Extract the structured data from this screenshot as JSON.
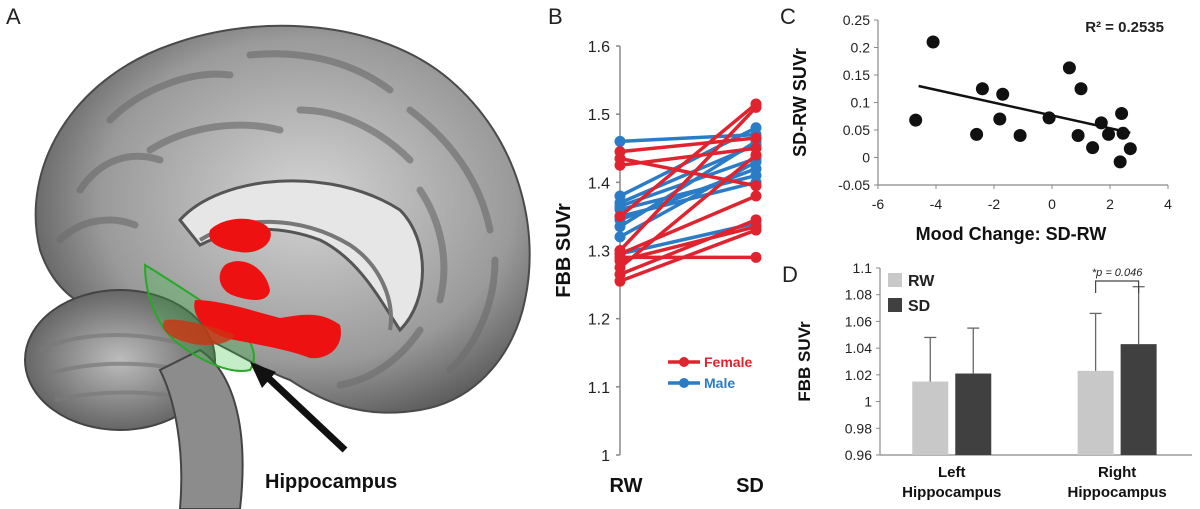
{
  "panel_labels": {
    "a": "A",
    "b": "B",
    "c": "C",
    "d": "D"
  },
  "panel_a": {
    "image_description": "sagittal-brain-mri",
    "annotation": "Hippocampus",
    "colors": {
      "red_region": "#ee1111",
      "green_region": "#22bb22"
    }
  },
  "chart_data": [
    {
      "type": "line",
      "id": "B",
      "ylabel": "FBB SUVr",
      "categories": [
        "RW",
        "SD"
      ],
      "ylim": [
        1,
        1.6
      ],
      "yticks": [
        "1",
        "1.1",
        "1.2",
        "1.3",
        "1.4",
        "1.5",
        "1.6"
      ],
      "legend": [
        {
          "name": "Female",
          "color": "#e0242f"
        },
        {
          "name": "Male",
          "color": "#2b7cc7"
        }
      ],
      "legend_placement": "bottom-right",
      "series": [
        {
          "group": "Female",
          "values": [
            1.445,
            1.465
          ]
        },
        {
          "group": "Female",
          "values": [
            1.435,
            1.395
          ]
        },
        {
          "group": "Female",
          "values": [
            1.425,
            1.45
          ]
        },
        {
          "group": "Female",
          "values": [
            1.35,
            1.515
          ]
        },
        {
          "group": "Female",
          "values": [
            1.3,
            1.51
          ]
        },
        {
          "group": "Female",
          "values": [
            1.295,
            1.38
          ]
        },
        {
          "group": "Female",
          "values": [
            1.29,
            1.29
          ]
        },
        {
          "group": "Female",
          "values": [
            1.285,
            1.335
          ]
        },
        {
          "group": "Female",
          "values": [
            1.275,
            1.44
          ]
        },
        {
          "group": "Female",
          "values": [
            1.265,
            1.345
          ]
        },
        {
          "group": "Female",
          "values": [
            1.255,
            1.33
          ]
        },
        {
          "group": "Male",
          "values": [
            1.46,
            1.47
          ]
        },
        {
          "group": "Male",
          "values": [
            1.38,
            1.48
          ]
        },
        {
          "group": "Male",
          "values": [
            1.37,
            1.455
          ]
        },
        {
          "group": "Male",
          "values": [
            1.365,
            1.435
          ]
        },
        {
          "group": "Male",
          "values": [
            1.36,
            1.41
          ]
        },
        {
          "group": "Male",
          "values": [
            1.35,
            1.4
          ]
        },
        {
          "group": "Male",
          "values": [
            1.345,
            1.42
          ]
        },
        {
          "group": "Male",
          "values": [
            1.335,
            1.46
          ]
        },
        {
          "group": "Male",
          "values": [
            1.32,
            1.43
          ]
        },
        {
          "group": "Male",
          "values": [
            1.295,
            1.34
          ]
        }
      ]
    },
    {
      "type": "scatter",
      "id": "C",
      "xlabel": "Mood Change: SD-RW",
      "ylabel": "SD-RW SUVr",
      "annotation": "R² = 0.2535",
      "xlim": [
        -6,
        4
      ],
      "ylim": [
        -0.05,
        0.25
      ],
      "xticks": [
        "-6",
        "-4",
        "-2",
        "0",
        "2",
        "4"
      ],
      "yticks": [
        "-0.05",
        "0",
        "0.05",
        "0.1",
        "0.15",
        "0.2",
        "0.25"
      ],
      "points": [
        {
          "x": -4.1,
          "y": 0.21
        },
        {
          "x": -4.7,
          "y": 0.068
        },
        {
          "x": -2.4,
          "y": 0.125
        },
        {
          "x": -1.7,
          "y": 0.115
        },
        {
          "x": -2.6,
          "y": 0.042
        },
        {
          "x": -1.8,
          "y": 0.07
        },
        {
          "x": -1.1,
          "y": 0.04
        },
        {
          "x": -0.1,
          "y": 0.072
        },
        {
          "x": 0.6,
          "y": 0.163
        },
        {
          "x": 1.0,
          "y": 0.125
        },
        {
          "x": 0.9,
          "y": 0.04
        },
        {
          "x": 1.4,
          "y": 0.018
        },
        {
          "x": 1.7,
          "y": 0.063
        },
        {
          "x": 1.95,
          "y": 0.042
        },
        {
          "x": 2.4,
          "y": 0.08
        },
        {
          "x": 2.45,
          "y": 0.044
        },
        {
          "x": 2.7,
          "y": 0.016
        },
        {
          "x": 2.35,
          "y": -0.008
        }
      ],
      "trendline": {
        "x": [
          -4.6,
          2.7
        ],
        "y": [
          0.13,
          0.045
        ]
      }
    },
    {
      "type": "bar",
      "id": "D",
      "ylabel": "FBB SUVr",
      "categories": [
        "Left Hippocampus",
        "Right Hippocampus"
      ],
      "ylim": [
        0.96,
        1.1
      ],
      "yticks": [
        "0.96",
        "0.98",
        "1",
        "1.02",
        "1.04",
        "1.06",
        "1.08",
        "1.1"
      ],
      "series": [
        {
          "name": "RW",
          "color": "#c8c8c8",
          "values": [
            1.015,
            1.023
          ],
          "errors": [
            0.033,
            0.043
          ]
        },
        {
          "name": "SD",
          "color": "#404040",
          "values": [
            1.021,
            1.043
          ],
          "errors": [
            0.034,
            0.043
          ]
        }
      ],
      "legend_placement": "top-left",
      "significance": {
        "category": "Right Hippocampus",
        "label": "*p = 0.046"
      }
    }
  ]
}
